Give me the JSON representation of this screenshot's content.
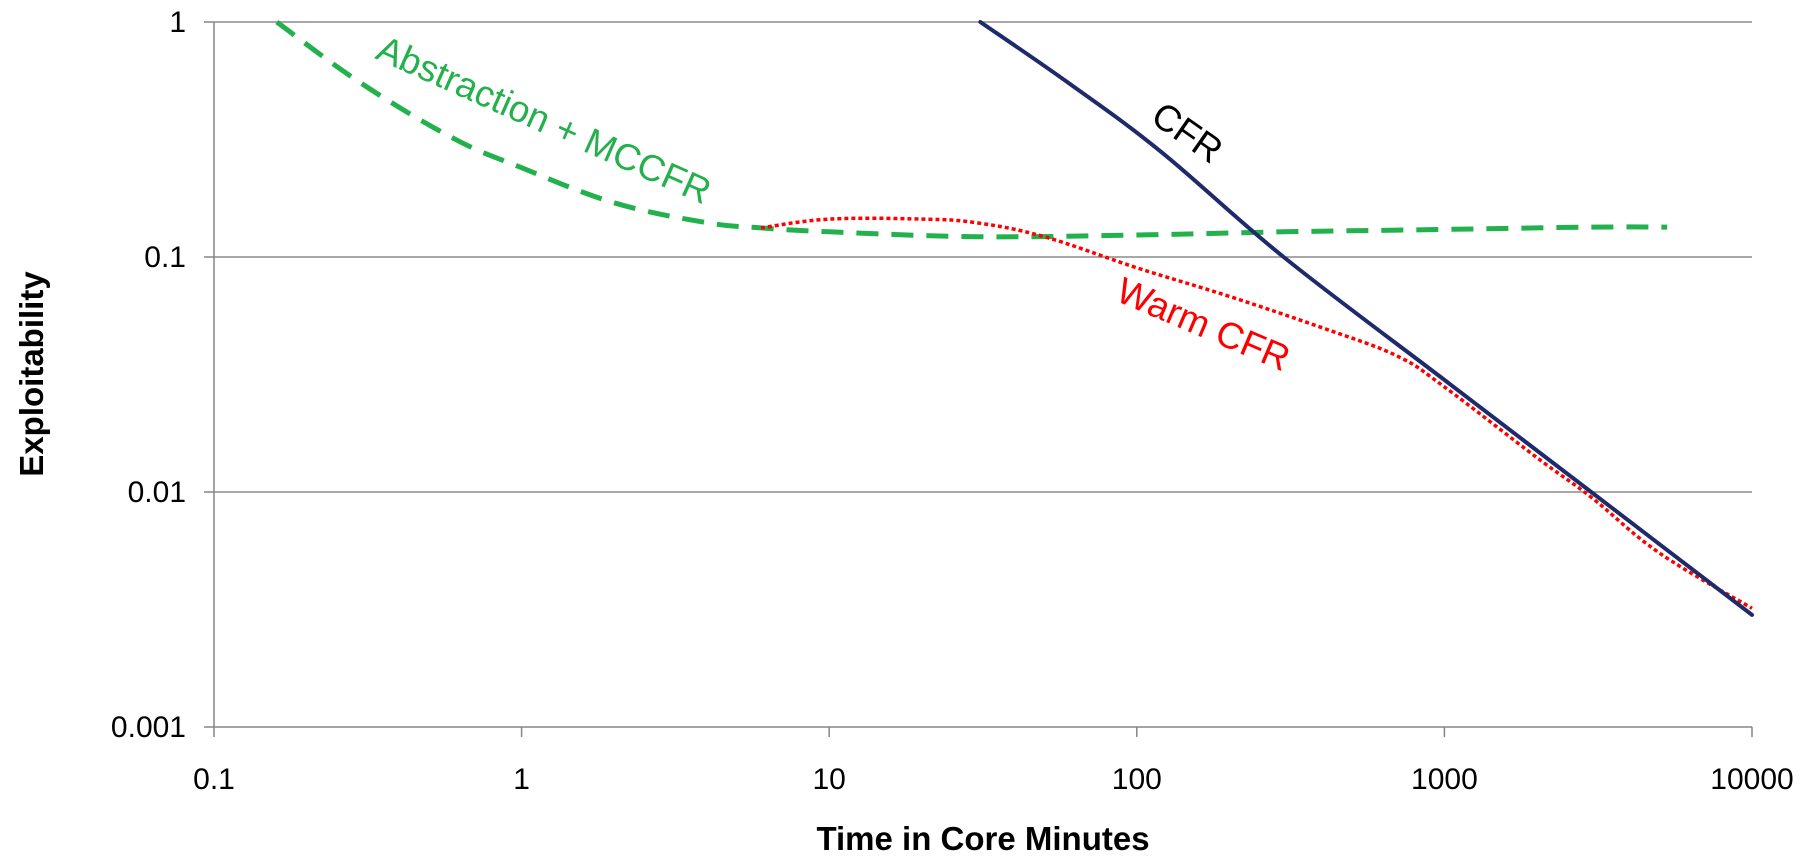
{
  "chart_data": {
    "type": "line",
    "title": "",
    "xlabel": "Time in Core Minutes",
    "ylabel": "Exploitability",
    "x_scale": "log",
    "y_scale": "log",
    "xlim": [
      0.1,
      10000
    ],
    "ylim": [
      0.001,
      1
    ],
    "x_ticks": [
      "0.1",
      "1",
      "10",
      "100",
      "1000",
      "10000"
    ],
    "y_ticks": [
      "1",
      "0.1",
      "0.01",
      "0.001"
    ],
    "grid": "horizontal",
    "legend": "none (series labeled inline)",
    "series": [
      {
        "name": "CFR",
        "color": "#1f2a6b",
        "style": "solid",
        "x": [
          31,
          60,
          120,
          300,
          1000,
          3000,
          10000
        ],
        "y": [
          1.0,
          0.55,
          0.28,
          0.1,
          0.03,
          0.01,
          0.003
        ]
      },
      {
        "name": "Abstraction + MCCFR",
        "color": "#22b14c",
        "style": "dashed",
        "x": [
          0.16,
          0.3,
          0.6,
          1,
          2,
          4,
          6,
          10,
          30,
          100,
          300,
          1000,
          3000,
          5300
        ],
        "y": [
          1.0,
          0.55,
          0.32,
          0.24,
          0.17,
          0.14,
          0.133,
          0.128,
          0.122,
          0.124,
          0.128,
          0.131,
          0.134,
          0.134
        ]
      },
      {
        "name": "Warm CFR",
        "color": "#ff0000",
        "style": "dotted",
        "x": [
          6,
          10,
          20,
          30,
          50,
          100,
          200,
          400,
          700,
          1000,
          2000,
          3000,
          5000,
          10000
        ],
        "y": [
          0.133,
          0.145,
          0.145,
          0.14,
          0.122,
          0.09,
          0.068,
          0.05,
          0.038,
          0.028,
          0.014,
          0.0095,
          0.0055,
          0.0032
        ]
      }
    ]
  }
}
